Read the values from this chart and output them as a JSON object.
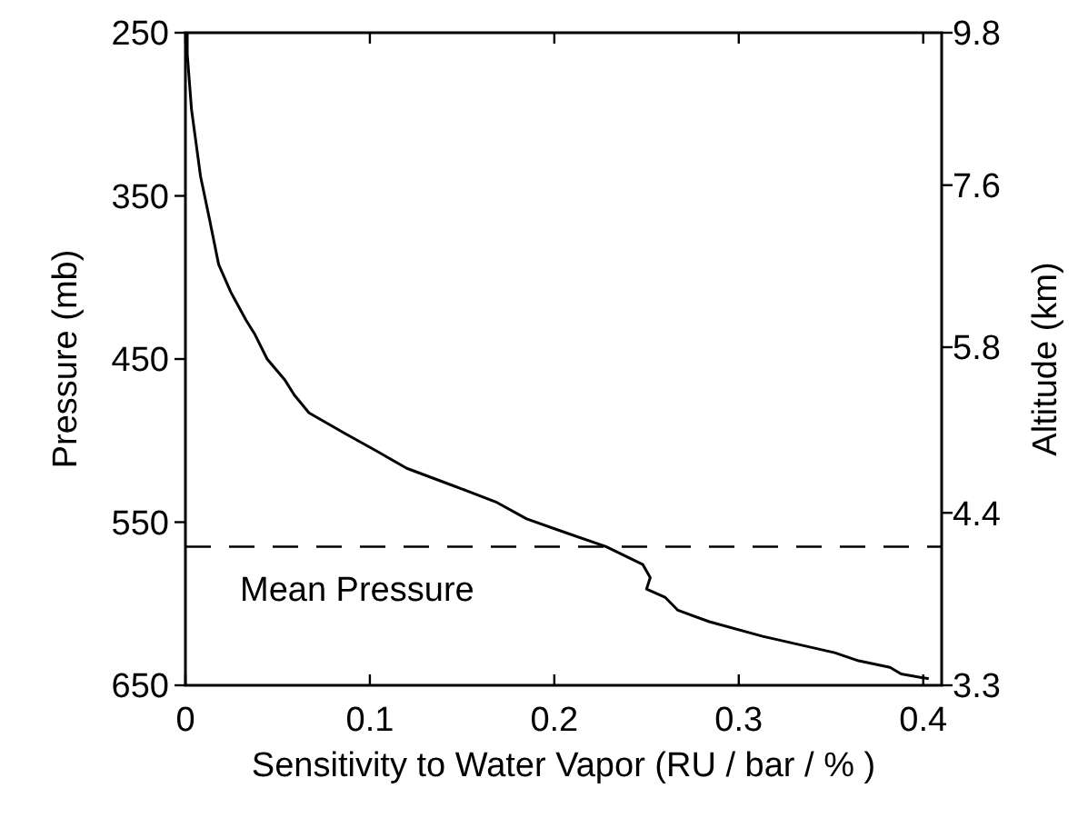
{
  "chart_data": {
    "type": "line",
    "xlabel": "Sensitivity to Water Vapor (RU / bar / % )",
    "ylabel": "Pressure (mb)",
    "y2label": "Altitude (km)",
    "xlim": [
      0,
      0.41
    ],
    "xticks": [
      0,
      0.1,
      0.2,
      0.3,
      0.4
    ],
    "ylim": [
      650,
      250
    ],
    "yticks": [
      250,
      350,
      450,
      550,
      650
    ],
    "y2lim": [
      3.3,
      9.8
    ],
    "y2ticks": [
      9.8,
      7.6,
      5.8,
      4.4,
      3.3
    ],
    "log": "y2",
    "grid": false,
    "marker": "none",
    "line_style": "solid",
    "series": [
      {
        "color": "#000000",
        "x": [
          0.001,
          0.001,
          0.0033,
          0.0082,
          0.013,
          0.018,
          0.0246,
          0.0328,
          0.0377,
          0.0443,
          0.054,
          0.059,
          0.067,
          0.087,
          0.103,
          0.12,
          0.146,
          0.169,
          0.185,
          0.205,
          0.228,
          0.248,
          0.252,
          0.25,
          0.26,
          0.267,
          0.284,
          0.313,
          0.352,
          0.365,
          0.382,
          0.388,
          0.403
        ],
        "values": [
          250,
          263,
          297,
          338,
          364,
          392,
          409,
          426,
          435,
          450,
          463,
          472,
          483,
          496,
          506,
          517,
          528,
          538,
          548,
          556,
          565,
          576,
          584,
          591,
          596,
          604,
          611,
          620,
          630,
          635,
          639,
          643,
          646
        ]
      }
    ],
    "ref_lines": [
      {
        "axis": "y",
        "value": 565,
        "label": "Mean Pressure",
        "line_style": "dashed",
        "color": "#000000"
      }
    ]
  }
}
